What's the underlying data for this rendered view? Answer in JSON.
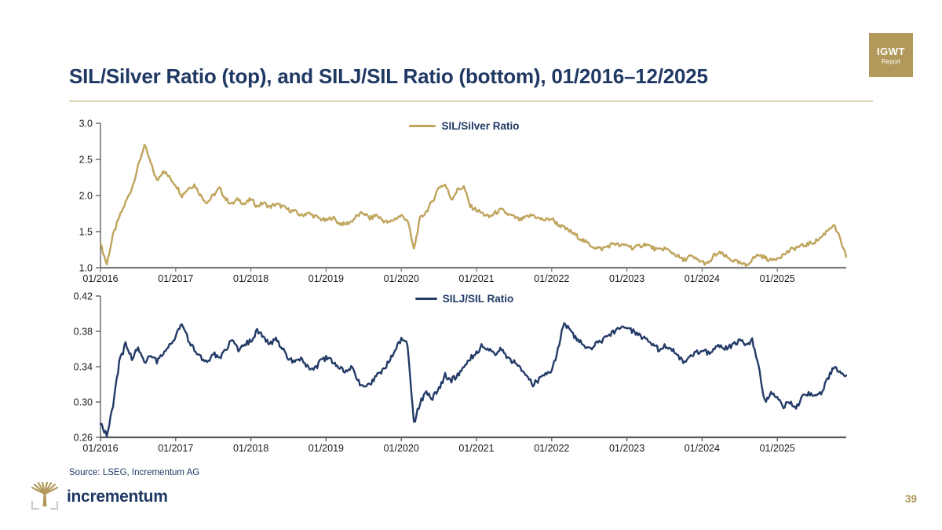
{
  "header": {
    "title": "SIL/Silver Ratio (top), and SILJ/SIL Ratio (bottom), 01/2016–12/2025"
  },
  "badge": {
    "line1": "IGWT",
    "line2": "Report"
  },
  "footer": {
    "source": "Source: LSEG, Incrementum AG",
    "logo_text": "incrementum",
    "page_number": "39"
  },
  "colors": {
    "gold_line": "#bfa45c",
    "navy_line": "#243b67",
    "title_navy": "#1f3864",
    "badge_gold": "#b2995b",
    "divider_gold": "#dcd4b6",
    "page_number_gold": "#b0955a",
    "top_axis_gray": "#7f7f7f",
    "bottom_axis_gray": "#595959"
  },
  "chart_data": [
    {
      "type": "line",
      "legend": "SIL/Silver Ratio",
      "x_unit": "month",
      "x_range": [
        "01/2016",
        "12/2025"
      ],
      "x_tick_labels": [
        "01/2016",
        "01/2017",
        "01/2018",
        "01/2019",
        "01/2020",
        "01/2021",
        "01/2022",
        "01/2023",
        "01/2024",
        "01/2025"
      ],
      "ylim": [
        1.0,
        3.0
      ],
      "ytick_values": [
        3.0,
        2.5,
        2.0,
        1.5,
        1.0
      ],
      "ytick_labels": [
        "3.0",
        "2.5",
        "2.0",
        "1.5",
        "1.0"
      ],
      "grid": false,
      "legend_position": "top-center",
      "series": [
        {
          "name": "SIL/Silver Ratio",
          "color": "#bfa45c",
          "monthly_values": [
            1.33,
            1.05,
            1.45,
            1.7,
            1.9,
            2.1,
            2.4,
            2.7,
            2.45,
            2.2,
            2.35,
            2.25,
            2.15,
            2.0,
            2.1,
            2.15,
            2.0,
            1.9,
            2.0,
            2.1,
            1.95,
            1.88,
            1.95,
            1.88,
            1.95,
            1.85,
            1.9,
            1.84,
            1.88,
            1.85,
            1.8,
            1.78,
            1.72,
            1.76,
            1.72,
            1.68,
            1.65,
            1.7,
            1.62,
            1.6,
            1.64,
            1.72,
            1.76,
            1.68,
            1.73,
            1.66,
            1.62,
            1.68,
            1.72,
            1.66,
            1.25,
            1.68,
            1.78,
            1.92,
            2.12,
            2.15,
            1.95,
            2.08,
            2.12,
            1.85,
            1.8,
            1.75,
            1.7,
            1.76,
            1.8,
            1.74,
            1.7,
            1.66,
            1.7,
            1.73,
            1.68,
            1.66,
            1.68,
            1.6,
            1.55,
            1.5,
            1.44,
            1.38,
            1.32,
            1.28,
            1.26,
            1.3,
            1.34,
            1.3,
            1.32,
            1.27,
            1.3,
            1.33,
            1.28,
            1.24,
            1.27,
            1.22,
            1.17,
            1.1,
            1.16,
            1.12,
            1.08,
            1.05,
            1.18,
            1.2,
            1.14,
            1.1,
            1.06,
            1.03,
            1.12,
            1.18,
            1.14,
            1.1,
            1.14,
            1.18,
            1.24,
            1.28,
            1.3,
            1.33,
            1.36,
            1.42,
            1.52,
            1.6,
            1.4,
            1.15
          ]
        }
      ]
    },
    {
      "type": "line",
      "legend": "SILJ/SIL Ratio",
      "x_unit": "month",
      "x_range": [
        "01/2016",
        "12/2025"
      ],
      "x_tick_labels": [
        "01/2016",
        "01/2017",
        "01/2018",
        "01/2019",
        "01/2020",
        "01/2021",
        "01/2022",
        "01/2023",
        "01/2024",
        "01/2025"
      ],
      "ylim": [
        0.26,
        0.42
      ],
      "ytick_values": [
        0.42,
        0.38,
        0.34,
        0.3,
        0.26
      ],
      "ytick_labels": [
        "0.42",
        "0.38",
        "0.34",
        "0.30",
        "0.26"
      ],
      "grid": false,
      "legend_position": "top-center",
      "series": [
        {
          "name": "SILJ/SIL Ratio",
          "color": "#243b67",
          "monthly_values": [
            0.275,
            0.263,
            0.295,
            0.345,
            0.365,
            0.35,
            0.36,
            0.345,
            0.355,
            0.345,
            0.355,
            0.365,
            0.375,
            0.39,
            0.37,
            0.36,
            0.35,
            0.345,
            0.355,
            0.35,
            0.36,
            0.37,
            0.36,
            0.365,
            0.37,
            0.38,
            0.375,
            0.365,
            0.37,
            0.36,
            0.35,
            0.345,
            0.35,
            0.34,
            0.335,
            0.345,
            0.35,
            0.345,
            0.34,
            0.335,
            0.34,
            0.325,
            0.315,
            0.32,
            0.33,
            0.335,
            0.345,
            0.36,
            0.37,
            0.365,
            0.275,
            0.3,
            0.31,
            0.305,
            0.315,
            0.33,
            0.325,
            0.33,
            0.34,
            0.35,
            0.355,
            0.365,
            0.36,
            0.355,
            0.36,
            0.35,
            0.345,
            0.34,
            0.33,
            0.32,
            0.325,
            0.33,
            0.335,
            0.36,
            0.39,
            0.38,
            0.37,
            0.365,
            0.36,
            0.365,
            0.37,
            0.375,
            0.38,
            0.385,
            0.385,
            0.38,
            0.375,
            0.37,
            0.365,
            0.36,
            0.365,
            0.36,
            0.355,
            0.345,
            0.35,
            0.355,
            0.36,
            0.355,
            0.36,
            0.365,
            0.36,
            0.365,
            0.37,
            0.365,
            0.37,
            0.34,
            0.3,
            0.31,
            0.305,
            0.295,
            0.3,
            0.295,
            0.305,
            0.31,
            0.305,
            0.31,
            0.325,
            0.34,
            0.335,
            0.33
          ]
        }
      ]
    }
  ]
}
